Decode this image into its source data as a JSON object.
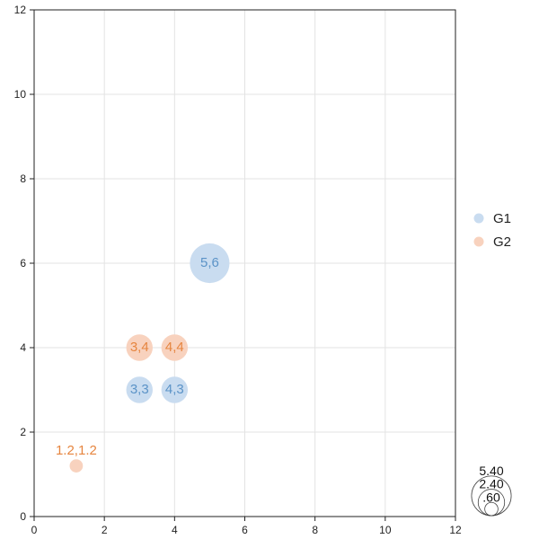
{
  "chart_data": {
    "type": "scatter",
    "title": "",
    "xlabel": "",
    "ylabel": "",
    "xlim": [
      0,
      12
    ],
    "ylim": [
      0,
      12
    ],
    "x_ticks": [
      "0",
      "2",
      "4",
      "6",
      "8",
      "10",
      "12"
    ],
    "y_ticks": [
      "0",
      "2",
      "4",
      "6",
      "8",
      "10",
      "12"
    ],
    "grid": true,
    "legend": "right",
    "series": [
      {
        "name": "G1",
        "color": "#c9dcf0",
        "label_color": "#5b93c7",
        "points": [
          {
            "x": 5,
            "y": 6,
            "size": 5.4,
            "label": "5,6"
          },
          {
            "x": 3,
            "y": 3,
            "size": 2.4,
            "label": "3,3"
          },
          {
            "x": 4,
            "y": 3,
            "size": 2.4,
            "label": "4,3"
          }
        ]
      },
      {
        "name": "G2",
        "color": "#f8d2be",
        "label_color": "#e6853f",
        "points": [
          {
            "x": 3,
            "y": 4,
            "size": 2.4,
            "label": "3,4"
          },
          {
            "x": 4,
            "y": 4,
            "size": 2.4,
            "label": "4,4"
          },
          {
            "x": 1.2,
            "y": 1.2,
            "size": 0.6,
            "label": "1.2,1.2"
          }
        ]
      }
    ],
    "size_legend": [
      "5.40",
      "2.40",
      ".60"
    ]
  }
}
